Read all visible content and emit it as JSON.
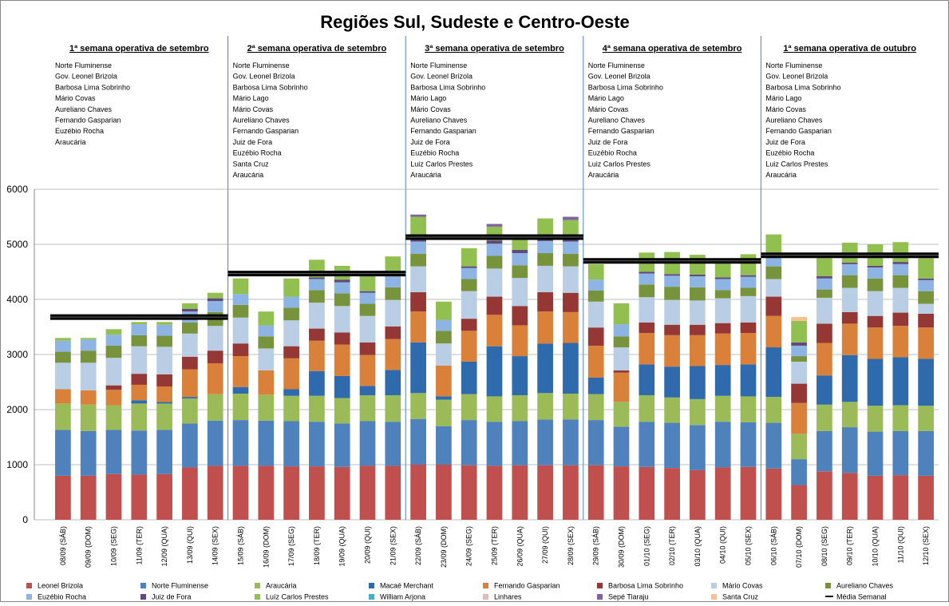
{
  "chart_data": {
    "type": "stacked_bar",
    "title": "Regiões Sul, Sudeste e Centro-Oeste",
    "categories": [
      "08/09 (SÁB)",
      "09/09 (DOM)",
      "10/09 (SEG)",
      "11/09 (TER)",
      "12/09 (QUA)",
      "13/09 (QUI)",
      "14/09 (SEX)",
      "15/09 (SÁB)",
      "16/09 (DOM)",
      "17/09 (SEG)",
      "18/09 (TER)",
      "19/09 (QUA)",
      "20/09 (QUI)",
      "21/09 (SEX)",
      "22/09 (SÁB)",
      "23/09 (DOM)",
      "24/09 (SEG)",
      "25/09 (TER)",
      "26/09 (QUA)",
      "27/09 (QUI)",
      "28/09 (SEX)",
      "29/09 (SÁB)",
      "30/09 (DOM)",
      "01/10 (SEG)",
      "02/10 (TER)",
      "03/10 (QUA)",
      "04/10 (QUI)",
      "05/10 (SEX)",
      "06/10 (SÁB)",
      "07/10 (DOM)",
      "08/10 (SEG)",
      "09/10 (TER)",
      "10/10 (QUA)",
      "11/10 (QUI)",
      "12/10 (SEX)"
    ],
    "series": [
      {
        "name": "Leonel Brizola",
        "color": "#c0504d",
        "values": [
          800,
          800,
          830,
          820,
          830,
          950,
          980,
          980,
          980,
          970,
          970,
          960,
          980,
          980,
          1000,
          1000,
          990,
          980,
          990,
          990,
          990,
          990,
          970,
          960,
          940,
          900,
          950,
          960,
          930,
          630,
          880,
          850,
          800,
          810,
          800
        ]
      },
      {
        "name": "Norte Fluminense",
        "color": "#4f81bd",
        "values": [
          830,
          810,
          800,
          800,
          800,
          800,
          820,
          830,
          820,
          820,
          810,
          790,
          810,
          800,
          830,
          700,
          820,
          800,
          800,
          830,
          830,
          820,
          720,
          820,
          820,
          820,
          830,
          810,
          830,
          470,
          730,
          830,
          800,
          800,
          810
        ]
      },
      {
        "name": "Araucária",
        "color": "#9bbb59",
        "values": [
          480,
          480,
          450,
          490,
          480,
          450,
          480,
          480,
          470,
          460,
          470,
          460,
          470,
          480,
          470,
          480,
          470,
          460,
          470,
          480,
          470,
          470,
          450,
          480,
          460,
          470,
          470,
          470,
          470,
          460,
          480,
          460,
          470,
          470,
          460
        ]
      },
      {
        "name": "Macaé Merchant",
        "color": "#2f6aac",
        "values": [
          0,
          0,
          0,
          60,
          30,
          30,
          0,
          120,
          0,
          120,
          450,
          400,
          170,
          460,
          920,
          60,
          590,
          910,
          710,
          900,
          920,
          300,
          0,
          560,
          560,
          600,
          560,
          580,
          900,
          0,
          530,
          850,
          850,
          870,
          850
        ]
      },
      {
        "name": "Fernando Gasparian",
        "color": "#d9813a",
        "values": [
          260,
          260,
          280,
          280,
          280,
          500,
          560,
          560,
          440,
          560,
          550,
          570,
          560,
          560,
          560,
          560,
          560,
          570,
          560,
          580,
          560,
          580,
          530,
          570,
          570,
          560,
          570,
          570,
          570,
          560,
          590,
          570,
          570,
          570,
          570
        ]
      },
      {
        "name": "Barbosa Lima Sobrinho",
        "color": "#953735",
        "values": [
          0,
          0,
          80,
          200,
          220,
          230,
          230,
          230,
          0,
          220,
          220,
          220,
          230,
          230,
          350,
          0,
          220,
          330,
          350,
          350,
          350,
          330,
          40,
          190,
          190,
          190,
          190,
          190,
          350,
          350,
          350,
          210,
          210,
          240,
          250
        ]
      },
      {
        "name": "Mário Covas",
        "color": "#b9cde5",
        "values": [
          480,
          500,
          500,
          500,
          500,
          420,
          450,
          470,
          400,
          470,
          470,
          480,
          480,
          480,
          470,
          400,
          500,
          510,
          510,
          480,
          480,
          470,
          420,
          460,
          450,
          440,
          450,
          480,
          320,
          400,
          470,
          440,
          450,
          450,
          180
        ]
      },
      {
        "name": "Aureliano Chaves",
        "color": "#77933c",
        "values": [
          200,
          220,
          220,
          200,
          200,
          200,
          250,
          230,
          220,
          230,
          230,
          230,
          220,
          230,
          230,
          230,
          220,
          230,
          230,
          230,
          230,
          200,
          200,
          230,
          240,
          240,
          150,
          150,
          230,
          100,
          150,
          230,
          230,
          230,
          230
        ]
      },
      {
        "name": "Euzébio Rocha",
        "color": "#8eb4e3",
        "values": [
          200,
          200,
          200,
          200,
          200,
          200,
          200,
          200,
          200,
          200,
          200,
          200,
          200,
          200,
          220,
          200,
          200,
          220,
          220,
          220,
          220,
          200,
          220,
          200,
          200,
          200,
          200,
          200,
          220,
          190,
          200,
          200,
          200,
          200,
          200
        ]
      },
      {
        "name": "Juiz de Fora",
        "color": "#604a7b",
        "values": [
          0,
          0,
          0,
          0,
          0,
          50,
          50,
          0,
          0,
          0,
          30,
          50,
          30,
          30,
          60,
          0,
          30,
          60,
          60,
          60,
          60,
          0,
          0,
          30,
          30,
          30,
          30,
          30,
          30,
          60,
          40,
          30,
          30,
          40,
          30
        ]
      },
      {
        "name": "Luíz Carlos Prestes",
        "color": "#92c050",
        "values": [
          50,
          30,
          100,
          40,
          50,
          100,
          100,
          280,
          250,
          330,
          320,
          250,
          270,
          330,
          390,
          330,
          330,
          250,
          250,
          350,
          330,
          280,
          380,
          350,
          400,
          360,
          300,
          380,
          330,
          390,
          330,
          360,
          390,
          360,
          370
        ]
      },
      {
        "name": "William Arjona",
        "color": "#4bacc6",
        "values": [
          0,
          0,
          0,
          0,
          0,
          0,
          0,
          0,
          0,
          0,
          0,
          0,
          0,
          0,
          0,
          0,
          0,
          0,
          0,
          0,
          0,
          0,
          0,
          0,
          0,
          0,
          0,
          0,
          0,
          0,
          0,
          0,
          0,
          0,
          0
        ]
      },
      {
        "name": "Linhares",
        "color": "#e6b9b8",
        "values": [
          0,
          0,
          0,
          0,
          0,
          0,
          0,
          0,
          0,
          0,
          0,
          0,
          0,
          0,
          0,
          0,
          0,
          0,
          0,
          0,
          0,
          0,
          0,
          0,
          0,
          0,
          0,
          0,
          0,
          0,
          0,
          0,
          0,
          0,
          0
        ]
      },
      {
        "name": "Sepé Tiaraju",
        "color": "#8064a2",
        "values": [
          0,
          0,
          0,
          0,
          0,
          0,
          0,
          0,
          0,
          0,
          0,
          0,
          0,
          0,
          40,
          0,
          0,
          50,
          0,
          0,
          60,
          0,
          0,
          0,
          0,
          0,
          0,
          0,
          0,
          0,
          0,
          0,
          0,
          0,
          0
        ]
      },
      {
        "name": "Santa Cruz",
        "color": "#fac090",
        "values": [
          0,
          0,
          0,
          0,
          0,
          0,
          0,
          0,
          0,
          0,
          0,
          0,
          0,
          0,
          0,
          0,
          0,
          0,
          0,
          0,
          0,
          0,
          0,
          0,
          0,
          0,
          0,
          0,
          0,
          70,
          0,
          0,
          0,
          0,
          0
        ]
      }
    ],
    "average": {
      "name": "Média Semanal",
      "color": "#000000"
    },
    "weeks": [
      {
        "title": "1ª semana operativa de setembro",
        "plants": [
          "Norte Fluminense",
          "Gov. Leonel Brizola",
          "Barbosa Lima Sobrinho",
          "Mário Covas",
          "Aureliano  Chaves",
          "Fernando Gasparian",
          "Euzébio Rocha",
          "Araucária"
        ],
        "average": 3680
      },
      {
        "title": "2ª semana operativa de setembro",
        "plants": [
          "Norte Fluminense",
          "Gov. Leonel Brizola",
          "Barbosa Lima Sobrinho",
          "Mário Lago",
          "Mário Covas",
          "Aureliano  Chaves",
          "Fernando Gasparian",
          "Juiz de Fora",
          "Euzébio Rocha",
          "Santa Cruz",
          "Araucária"
        ],
        "average": 4470
      },
      {
        "title": "3ª semana operativa de setembro",
        "plants": [
          "Norte Fluminense",
          "Gov. Leonel Brizola",
          "Barbosa Lima Sobrinho",
          "Mário Lago",
          "Mário Covas",
          "Aureliano  Chaves",
          "Fernando Gasparian",
          "Juiz de Fora",
          "Euzébio Rocha",
          "Luiz Carlos Prestes",
          "Araucária"
        ],
        "average": 5130
      },
      {
        "title": "4ª semana operativa de setembro",
        "plants": [
          "Norte Fluminense",
          "Gov. Leonel Brizola",
          "Barbosa Lima Sobrinho",
          "Mário Lago",
          "Mário Covas",
          "Aureliano  Chaves",
          "Fernando Gasparian",
          "Juiz de Fora",
          "Euzébio Rocha",
          "Luiz Carlos Prestes",
          "Araucária"
        ],
        "average": 4700
      },
      {
        "title": "1ª semana operativa de outubro",
        "plants": [
          "Norte Fluminense",
          "Gov. Leonel Brizola",
          "Barbosa Lima Sobrinho",
          "Mário Lago",
          "Mário Covas",
          "Aureliano  Chaves",
          "Fernando Gasparian",
          "Juiz de Fora",
          "Euzébio Rocha",
          "Luiz Carlos Prestes",
          "Araucária"
        ],
        "average": 4800
      }
    ],
    "ylim": [
      0,
      6000
    ],
    "yticks": [
      0,
      1000,
      2000,
      3000,
      4000,
      5000,
      6000
    ],
    "grid": true
  }
}
